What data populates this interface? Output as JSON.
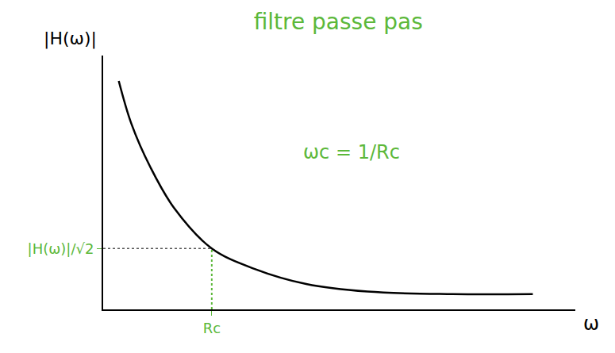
{
  "chart_data": {
    "type": "line",
    "title": "filtre passe pas",
    "xlabel": "ω",
    "ylabel": "|H(ω)|",
    "annotations": [
      "ωc = 1/Rc"
    ],
    "x": [
      0.33,
      0.6,
      1.0,
      1.5,
      2.3,
      3.2,
      4.3,
      5.6,
      7.4,
      9.1
    ],
    "values": [
      9.0,
      7.3,
      5.6,
      4.0,
      2.4,
      1.6,
      1.0,
      0.7,
      0.6,
      0.6
    ],
    "color": "#000000",
    "line_style": "solid",
    "marker": "none",
    "xlim": [
      0,
      10
    ],
    "ylim": [
      0,
      10
    ],
    "xticks": [
      {
        "value": 2.3,
        "label": "Rc"
      }
    ],
    "yticks": [
      {
        "value": 2.4,
        "label": "|H(ω)|/√2"
      }
    ],
    "grid": false
  }
}
